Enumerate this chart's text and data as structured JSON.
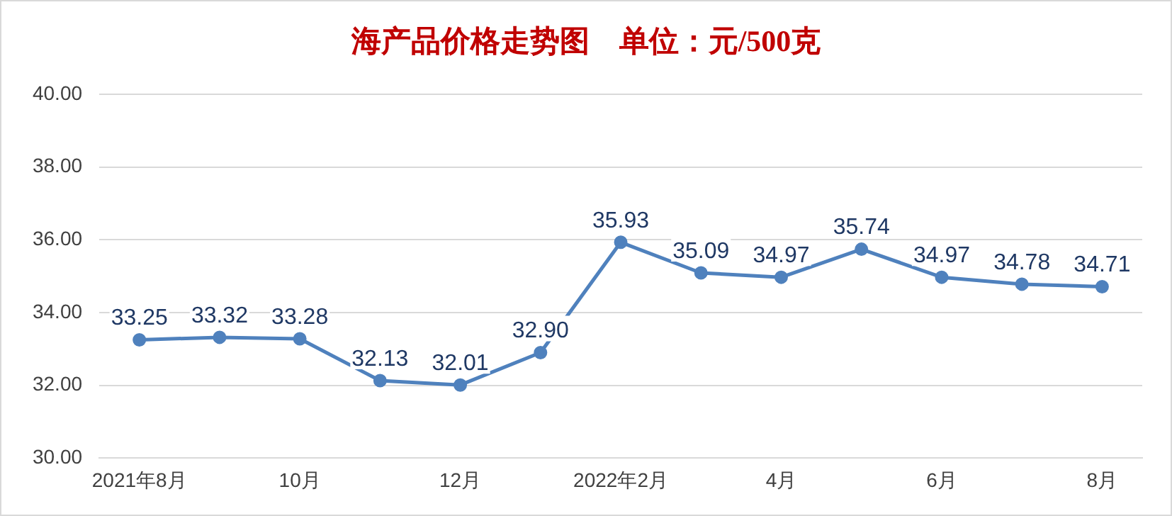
{
  "chart_data": {
    "type": "line",
    "title": "海产品价格走势图    单位：元/500克",
    "categories": [
      "2021年8月",
      null,
      "10月",
      null,
      "12月",
      null,
      "2022年2月",
      null,
      "4月",
      null,
      "6月",
      null,
      "8月"
    ],
    "series": [
      {
        "color": "#4f81bd",
        "values": [
          33.25,
          33.32,
          33.28,
          32.13,
          32.01,
          32.9,
          35.93,
          35.09,
          34.97,
          35.74,
          34.97,
          34.78,
          34.71
        ],
        "value_labels": [
          "33.25",
          "33.32",
          "33.28",
          "32.13",
          "32.01",
          "32.90",
          "35.93",
          "35.09",
          "34.97",
          "35.74",
          "34.97",
          "34.78",
          "34.71"
        ]
      }
    ],
    "ylim": [
      30,
      40
    ],
    "yticks": [
      {
        "value": 30,
        "label": "30.00"
      },
      {
        "value": 32,
        "label": "32.00"
      },
      {
        "value": 34,
        "label": "34.00"
      },
      {
        "value": 36,
        "label": "36.00"
      },
      {
        "value": 38,
        "label": "38.00"
      },
      {
        "value": 40,
        "label": "40.00"
      }
    ],
    "grid": "y",
    "legend": false,
    "marker": "circle",
    "line_style": "solid"
  }
}
